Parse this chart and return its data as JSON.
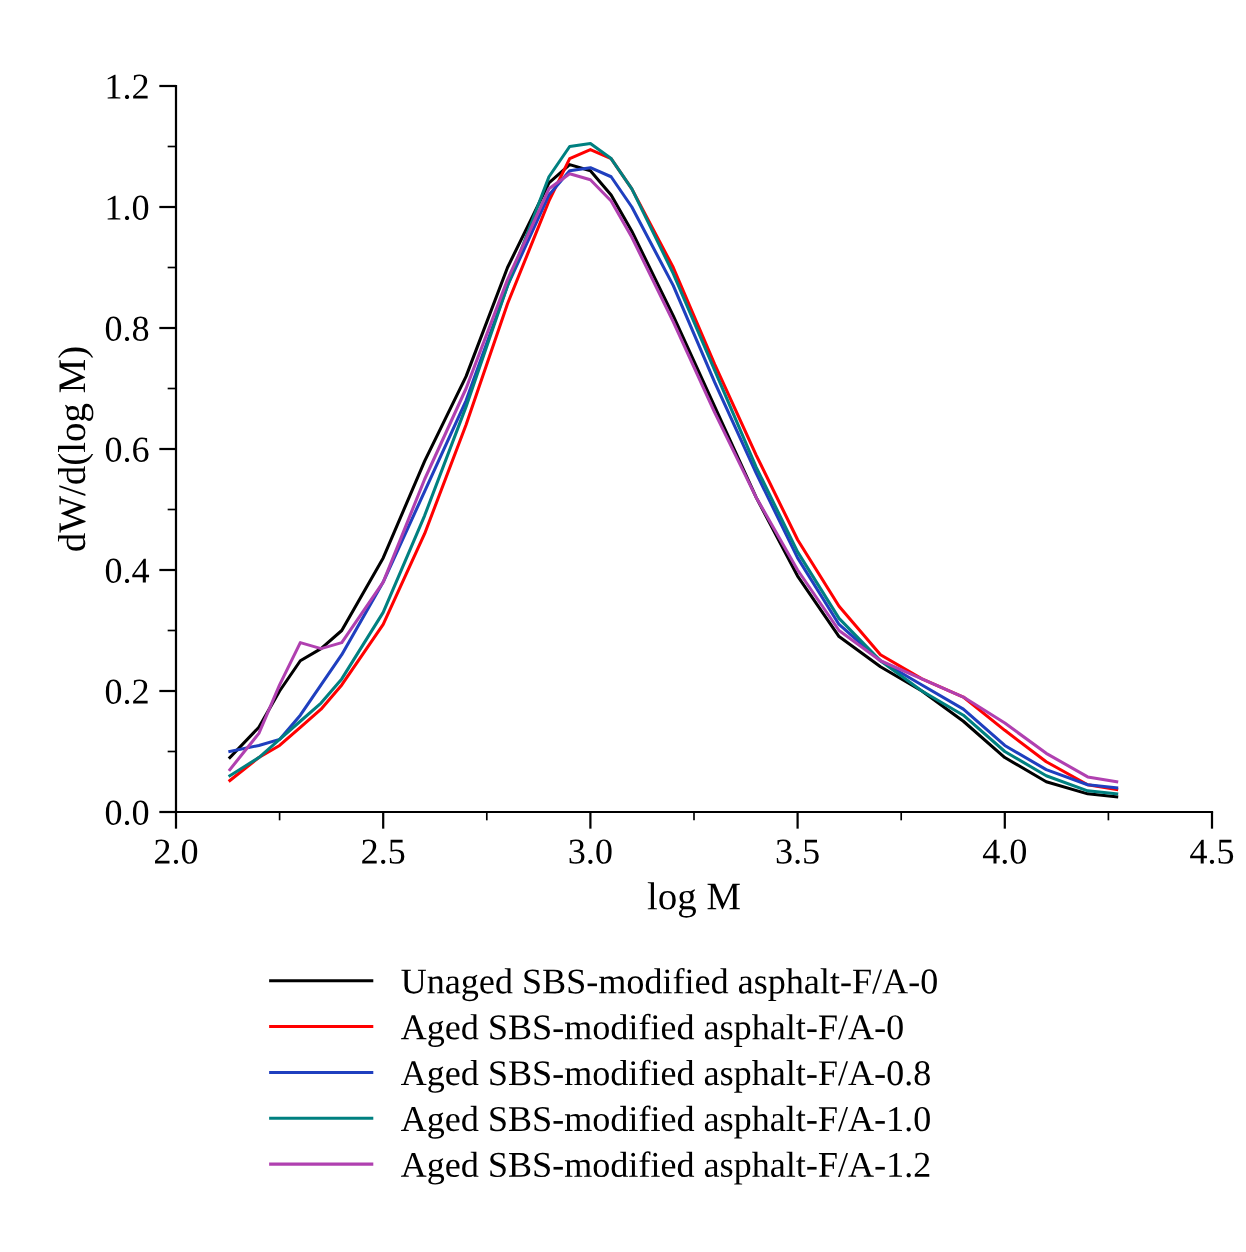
{
  "chart_data": {
    "type": "line",
    "xlabel": "log M",
    "ylabel": "dW/d(log M)",
    "x": [
      2.13,
      2.2,
      2.25,
      2.3,
      2.35,
      2.4,
      2.5,
      2.6,
      2.7,
      2.8,
      2.9,
      2.95,
      3.0,
      3.05,
      3.1,
      3.2,
      3.3,
      3.4,
      3.5,
      3.6,
      3.7,
      3.8,
      3.9,
      4.0,
      4.1,
      4.2,
      4.27
    ],
    "series": [
      {
        "name": "Unaged SBS-modified asphalt-F/A-0",
        "color": "#000000",
        "values": [
          0.09,
          0.14,
          0.2,
          0.25,
          0.27,
          0.3,
          0.42,
          0.58,
          0.72,
          0.9,
          1.04,
          1.07,
          1.06,
          1.02,
          0.96,
          0.82,
          0.67,
          0.52,
          0.39,
          0.29,
          0.24,
          0.2,
          0.15,
          0.09,
          0.05,
          0.03,
          0.025
        ]
      },
      {
        "name": "Aged SBS-modified asphalt-F/A-0",
        "color": "#ff0000",
        "values": [
          0.052,
          0.09,
          0.11,
          0.14,
          0.17,
          0.21,
          0.31,
          0.46,
          0.64,
          0.84,
          1.01,
          1.08,
          1.095,
          1.08,
          1.03,
          0.9,
          0.74,
          0.59,
          0.45,
          0.34,
          0.26,
          0.22,
          0.19,
          0.135,
          0.083,
          0.045,
          0.037
        ]
      },
      {
        "name": "Aged SBS-modified asphalt-F/A-0.8",
        "color": "#1f3fbf",
        "values": [
          0.1,
          0.11,
          0.12,
          0.16,
          0.21,
          0.26,
          0.38,
          0.53,
          0.68,
          0.87,
          1.02,
          1.06,
          1.065,
          1.05,
          1.0,
          0.87,
          0.71,
          0.56,
          0.42,
          0.31,
          0.25,
          0.21,
          0.17,
          0.11,
          0.07,
          0.045,
          0.04
        ]
      },
      {
        "name": "Aged SBS-modified asphalt-F/A-1.0",
        "color": "#008080",
        "values": [
          0.06,
          0.09,
          0.12,
          0.15,
          0.18,
          0.22,
          0.33,
          0.49,
          0.67,
          0.87,
          1.05,
          1.1,
          1.105,
          1.08,
          1.03,
          0.89,
          0.73,
          0.57,
          0.43,
          0.32,
          0.25,
          0.2,
          0.16,
          0.1,
          0.06,
          0.035,
          0.03
        ]
      },
      {
        "name": "Aged SBS-modified asphalt-F/A-1.2",
        "color": "#b040b0",
        "values": [
          0.07,
          0.13,
          0.21,
          0.28,
          0.27,
          0.28,
          0.38,
          0.55,
          0.7,
          0.88,
          1.03,
          1.055,
          1.045,
          1.01,
          0.95,
          0.81,
          0.66,
          0.52,
          0.4,
          0.3,
          0.25,
          0.22,
          0.19,
          0.147,
          0.097,
          0.058,
          0.05
        ]
      }
    ],
    "xlim": [
      2.0,
      4.5
    ],
    "ylim": [
      0.0,
      1.2
    ],
    "xticks": [
      {
        "value": 2.0,
        "label": "2.0"
      },
      {
        "value": 2.5,
        "label": "2.5"
      },
      {
        "value": 3.0,
        "label": "3.0"
      },
      {
        "value": 3.5,
        "label": "3.5"
      },
      {
        "value": 4.0,
        "label": "4.0"
      },
      {
        "value": 4.5,
        "label": "4.5"
      }
    ],
    "yticks": [
      {
        "value": 0.0,
        "label": "0.0"
      },
      {
        "value": 0.2,
        "label": "0.2"
      },
      {
        "value": 0.4,
        "label": "0.4"
      },
      {
        "value": 0.6,
        "label": "0.6"
      },
      {
        "value": 0.8,
        "label": "0.8"
      },
      {
        "value": 1.0,
        "label": "1.0"
      },
      {
        "value": 1.2,
        "label": "1.2"
      }
    ],
    "grid": false,
    "legend": "bottom",
    "marker": "none",
    "line_style": "solid"
  }
}
